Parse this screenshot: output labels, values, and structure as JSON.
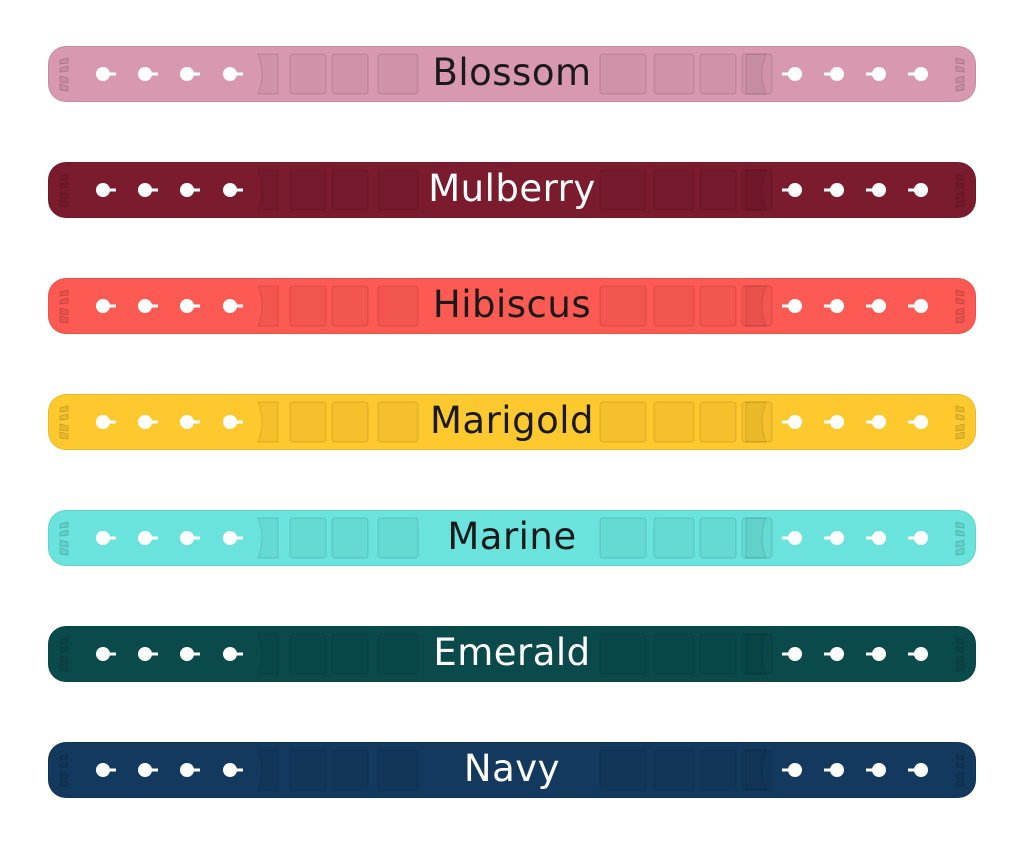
{
  "straps": [
    {
      "name": "Blossom",
      "color": "#d898b0",
      "text_color": "#1a1a1a"
    },
    {
      "name": "Mulberry",
      "color": "#7a1c2e",
      "text_color": "#ffffff"
    },
    {
      "name": "Hibiscus",
      "color": "#fc5a52",
      "text_color": "#1a1a1a"
    },
    {
      "name": "Marigold",
      "color": "#fec92e",
      "text_color": "#1a1a1a"
    },
    {
      "name": "Marine",
      "color": "#6ae3dc",
      "text_color": "#1a1a1a"
    },
    {
      "name": "Emerald",
      "color": "#0b4a4b",
      "text_color": "#ffffff"
    },
    {
      "name": "Navy",
      "color": "#13395e",
      "text_color": "#ffffff"
    }
  ]
}
